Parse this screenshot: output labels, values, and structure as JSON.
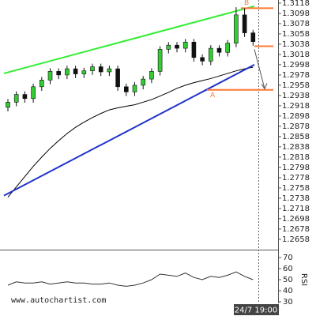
{
  "chart_data": [
    {
      "type": "candlestick",
      "watermark": "www.autochartist.com",
      "time_label": "24/7 19:00",
      "ylim": [
        1.2647,
        1.3124
      ],
      "yticks": [
        1.3118,
        1.3098,
        1.3078,
        1.3058,
        1.3038,
        1.3018,
        1.2998,
        1.2978,
        1.2958,
        1.2938,
        1.2918,
        1.2898,
        1.2878,
        1.2858,
        1.2838,
        1.2818,
        1.2798,
        1.2778,
        1.2758,
        1.2738,
        1.2718,
        1.2698,
        1.2678,
        1.2658
      ],
      "open": [
        1.2915,
        1.2925,
        1.294,
        1.2932,
        1.2955,
        1.2968,
        1.2985,
        1.2978,
        1.299,
        1.298,
        1.2986,
        1.2994,
        1.2984,
        1.299,
        1.2955,
        1.2945,
        1.2958,
        1.297,
        1.2985,
        1.3028,
        1.3036,
        1.303,
        1.3042,
        1.3012,
        1.3005,
        1.303,
        1.3022,
        1.304,
        1.3095,
        1.306
      ],
      "high": [
        1.2931,
        1.2946,
        1.2946,
        1.2961,
        1.2974,
        1.2991,
        1.2991,
        1.2996,
        1.2996,
        1.2992,
        1.3,
        1.3,
        1.2996,
        1.2996,
        1.2961,
        1.2964,
        1.2976,
        1.2991,
        1.3034,
        1.3042,
        1.3042,
        1.3048,
        1.3048,
        1.3018,
        1.3036,
        1.3036,
        1.3046,
        1.311,
        1.3108,
        1.3066
      ],
      "low": [
        1.2907,
        1.2917,
        1.2924,
        1.2924,
        1.2947,
        1.296,
        1.297,
        1.297,
        1.2972,
        1.2972,
        1.2978,
        1.2976,
        1.2976,
        1.2947,
        1.2937,
        1.2937,
        1.295,
        1.2962,
        1.2977,
        1.302,
        1.3022,
        1.3022,
        1.3004,
        1.2997,
        1.2997,
        1.3014,
        1.3014,
        1.3032,
        1.3052,
        1.3035
      ],
      "close": [
        1.2925,
        1.294,
        1.2932,
        1.2955,
        1.2968,
        1.2985,
        1.2978,
        1.299,
        1.298,
        1.2986,
        1.2994,
        1.2984,
        1.299,
        1.2955,
        1.2945,
        1.2958,
        1.297,
        1.2985,
        1.3028,
        1.3036,
        1.303,
        1.3042,
        1.3012,
        1.3005,
        1.303,
        1.3022,
        1.304,
        1.3095,
        1.306,
        1.3043
      ],
      "up_color": "#33cc33",
      "down_color": "#111111",
      "moving_average": {
        "color": "#000000",
        "values": [
          1.274,
          1.276,
          1.278,
          1.28,
          1.2818,
          1.2835,
          1.285,
          1.2864,
          1.2876,
          1.2886,
          1.2895,
          1.2903,
          1.291,
          1.2914,
          1.2917,
          1.292,
          1.2925,
          1.293,
          1.2937,
          1.2944,
          1.2952,
          1.2958,
          1.2963,
          1.2967,
          1.2971,
          1.2976,
          1.2981,
          1.2986,
          1.299,
          1.2993
        ]
      },
      "trend_lines": [
        {
          "color": "#33ee33",
          "values": [
            1.2981,
            1.3112
          ]
        },
        {
          "color": "#2233cc",
          "values": [
            1.2743,
            1.2998
          ]
        }
      ],
      "levels": [
        {
          "label": "B",
          "color": "#ff7733",
          "value": 1.3108
        },
        {
          "label": "A",
          "color": "#ff7733",
          "value": 1.2949
        },
        {
          "color": "#ff7733",
          "value": 1.3034
        }
      ],
      "forecast": {
        "color": "#555555",
        "values": [
          1.3028,
          1.2951
        ]
      }
    },
    {
      "type": "line",
      "label": "RSI",
      "ylim": [
        25,
        75
      ],
      "yticks": [
        30,
        40,
        50,
        60,
        70
      ],
      "color": "#333333",
      "values": [
        45,
        48,
        47,
        47,
        48,
        46,
        47,
        48,
        47,
        47,
        46,
        46,
        47,
        45,
        44,
        45,
        47,
        50,
        55,
        54,
        53,
        56,
        52,
        50,
        53,
        52,
        54,
        57,
        53,
        50
      ]
    }
  ]
}
